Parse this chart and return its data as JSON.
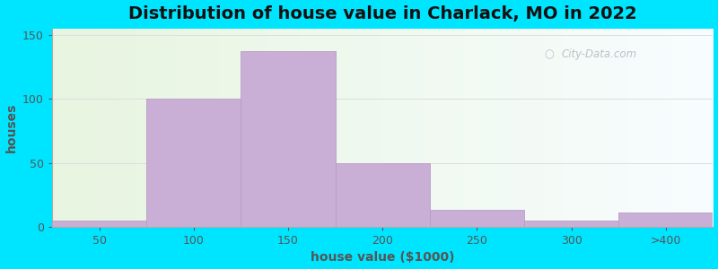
{
  "title": "Distribution of house value in Charlack, MO in 2022",
  "xlabel": "house value ($1000)",
  "ylabel": "houses",
  "bar_labels": [
    "50",
    "100",
    "150",
    "200",
    "250",
    "300",
    ">400"
  ],
  "bar_heights": [
    5,
    100,
    137,
    50,
    13,
    5,
    11
  ],
  "bar_color": "#c9aed6",
  "bar_edge_color": "#b89ec8",
  "ylim": [
    0,
    155
  ],
  "yticks": [
    0,
    50,
    100,
    150
  ],
  "background_outer": "#00e5ff",
  "background_inner_left": "#e8f5e0",
  "background_inner_right": "#f5faff",
  "title_fontsize": 14,
  "axis_label_fontsize": 10,
  "tick_fontsize": 9,
  "watermark_text": "City-Data.com",
  "watermark_color": "#b0b8c0"
}
